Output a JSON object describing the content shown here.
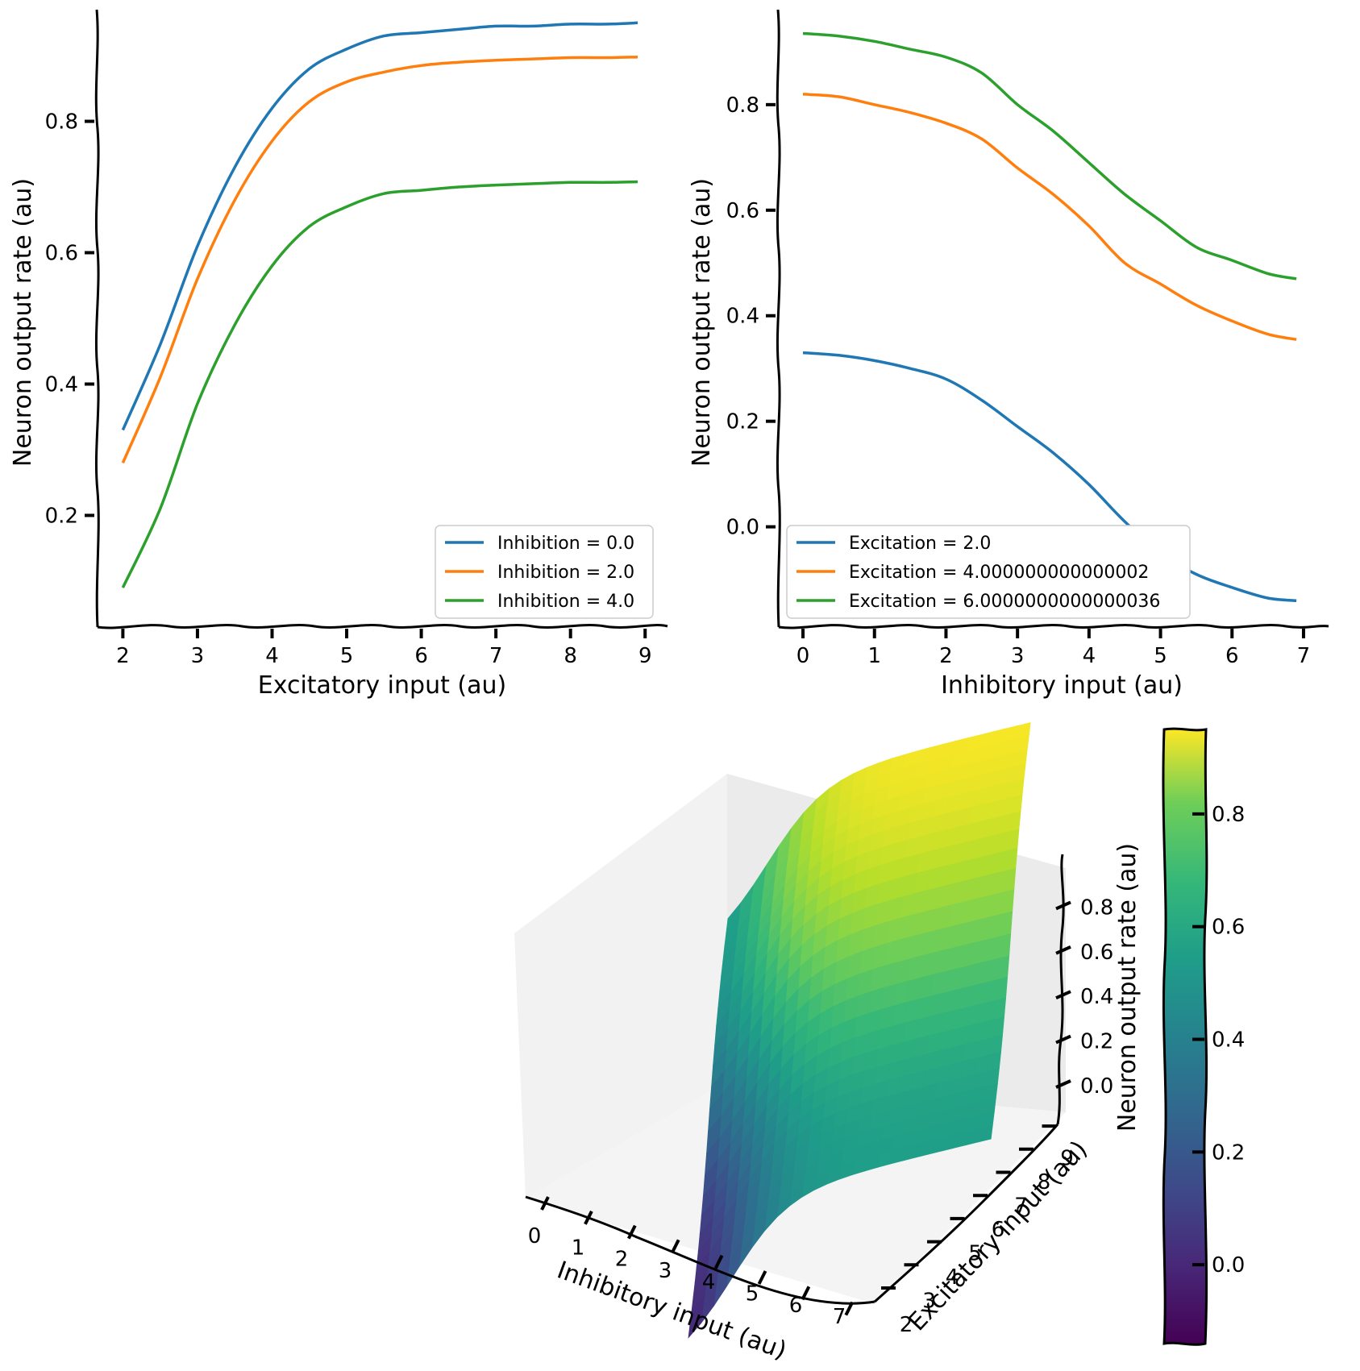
{
  "chart_data": [
    {
      "type": "line",
      "xlabel": "Excitatory input (au)",
      "ylabel": "Neuron output rate (au)",
      "xlim": [
        1.65,
        9.3
      ],
      "ylim": [
        0.03,
        0.97
      ],
      "xticks": [
        "2",
        "3",
        "4",
        "5",
        "6",
        "7",
        "8",
        "9"
      ],
      "yticks": [
        "0.2",
        "0.4",
        "0.6",
        "0.8"
      ],
      "legend_position": "lower right",
      "x": [
        2.0,
        2.5,
        3.0,
        3.5,
        4.0,
        4.5,
        5.0,
        5.5,
        6.0,
        6.5,
        7.0,
        7.5,
        8.0,
        8.5,
        8.9
      ],
      "series": [
        {
          "name": "Inhibition = 0.0",
          "color": "#1f77b4",
          "values": [
            0.33,
            0.46,
            0.61,
            0.73,
            0.82,
            0.88,
            0.91,
            0.93,
            0.935,
            0.94,
            0.945,
            0.945,
            0.948,
            0.948,
            0.95
          ]
        },
        {
          "name": "Inhibition = 2.0",
          "color": "#ff7f0e",
          "values": [
            0.28,
            0.41,
            0.56,
            0.68,
            0.77,
            0.83,
            0.86,
            0.875,
            0.885,
            0.89,
            0.893,
            0.895,
            0.897,
            0.897,
            0.898
          ]
        },
        {
          "name": "Inhibition = 4.0",
          "color": "#2ca02c",
          "values": [
            0.09,
            0.21,
            0.37,
            0.49,
            0.58,
            0.64,
            0.67,
            0.69,
            0.695,
            0.7,
            0.703,
            0.705,
            0.707,
            0.707,
            0.708
          ]
        }
      ]
    },
    {
      "type": "line",
      "xlabel": "Inhibitory input (au)",
      "ylabel": "Neuron output rate (au)",
      "xlim": [
        -0.35,
        7.35
      ],
      "ylim": [
        -0.19,
        0.98
      ],
      "xticks": [
        "0",
        "1",
        "2",
        "3",
        "4",
        "5",
        "6",
        "7"
      ],
      "yticks": [
        "0.0",
        "0.2",
        "0.4",
        "0.6",
        "0.8"
      ],
      "legend_position": "lower left",
      "x": [
        0.0,
        0.5,
        1.0,
        1.5,
        2.0,
        2.5,
        3.0,
        3.5,
        4.0,
        4.5,
        5.0,
        5.5,
        6.0,
        6.5,
        6.9
      ],
      "series": [
        {
          "name": "Excitation = 2.0",
          "color": "#1f77b4",
          "values": [
            0.33,
            0.325,
            0.315,
            0.3,
            0.28,
            0.24,
            0.19,
            0.14,
            0.08,
            0.01,
            -0.05,
            -0.09,
            -0.115,
            -0.135,
            -0.14
          ]
        },
        {
          "name": "Excitation = 4.000000000000002",
          "color": "#ff7f0e",
          "values": [
            0.82,
            0.815,
            0.8,
            0.785,
            0.765,
            0.735,
            0.68,
            0.63,
            0.57,
            0.5,
            0.46,
            0.42,
            0.39,
            0.365,
            0.355
          ]
        },
        {
          "name": "Excitation = 6.0000000000000036",
          "color": "#2ca02c",
          "values": [
            0.935,
            0.93,
            0.92,
            0.905,
            0.89,
            0.86,
            0.8,
            0.75,
            0.69,
            0.63,
            0.58,
            0.53,
            0.505,
            0.48,
            0.47
          ]
        }
      ]
    },
    {
      "type": "surface",
      "xlabel": "Inhibitory input (au)",
      "ylabel": "Excitatory input (au)",
      "zlabel": "Neuron output rate (au)",
      "xticks": [
        "0",
        "1",
        "2",
        "3",
        "4",
        "5",
        "6",
        "7"
      ],
      "yticks": [
        "2",
        "3",
        "4",
        "5",
        "6",
        "7",
        "8",
        "9"
      ],
      "zticks": [
        "0.0",
        "0.2",
        "0.4",
        "0.6",
        "0.8"
      ],
      "colormap": "viridis",
      "corner_values": {
        "inh0_exc2": 0.33,
        "inh0_exc9": 0.95,
        "inh7_exc9": 0.47,
        "inh7_exc2": -0.14
      }
    },
    {
      "type": "colorbar",
      "label": "Neuron output rate (au)",
      "colormap": "viridis",
      "range": [
        -0.14,
        0.95
      ],
      "ticks": [
        "0.0",
        "0.2",
        "0.4",
        "0.6",
        "0.8"
      ]
    }
  ]
}
